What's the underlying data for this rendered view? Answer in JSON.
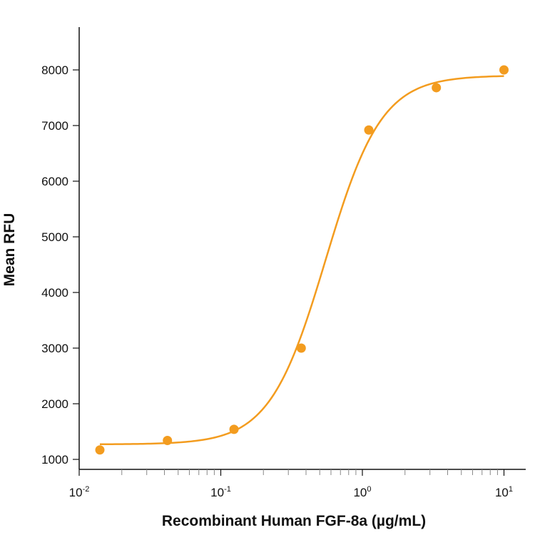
{
  "chart_data": {
    "type": "scatter",
    "title": "",
    "xlabel": "Recombinant Human FGF-8a (µg/mL)",
    "ylabel": "Mean RFU",
    "x_scale": "log",
    "xlim": [
      0.01,
      14
    ],
    "ylim": [
      950,
      8700
    ],
    "x_ticks": [
      {
        "base": "10",
        "exp": "-2",
        "value": 0.01
      },
      {
        "base": "10",
        "exp": "-1",
        "value": 0.1
      },
      {
        "base": "10",
        "exp": "0",
        "value": 1
      },
      {
        "base": "10",
        "exp": "1",
        "value": 10
      }
    ],
    "y_ticks": [
      1000,
      2000,
      3000,
      4000,
      5000,
      6000,
      7000,
      8000
    ],
    "grid": false,
    "color": "#F39C1F",
    "series": [
      {
        "x": [
          0.014,
          0.042,
          0.124,
          0.37,
          1.11,
          3.33,
          10
        ],
        "y": [
          1170,
          1340,
          1540,
          3000,
          6920,
          7680,
          8000
        ]
      }
    ],
    "fit_curve": {
      "type": "4PL",
      "bottom": 1270,
      "top": 7900,
      "ec50": 0.55,
      "hill": 2.2,
      "x_range": [
        0.014,
        10
      ]
    }
  }
}
